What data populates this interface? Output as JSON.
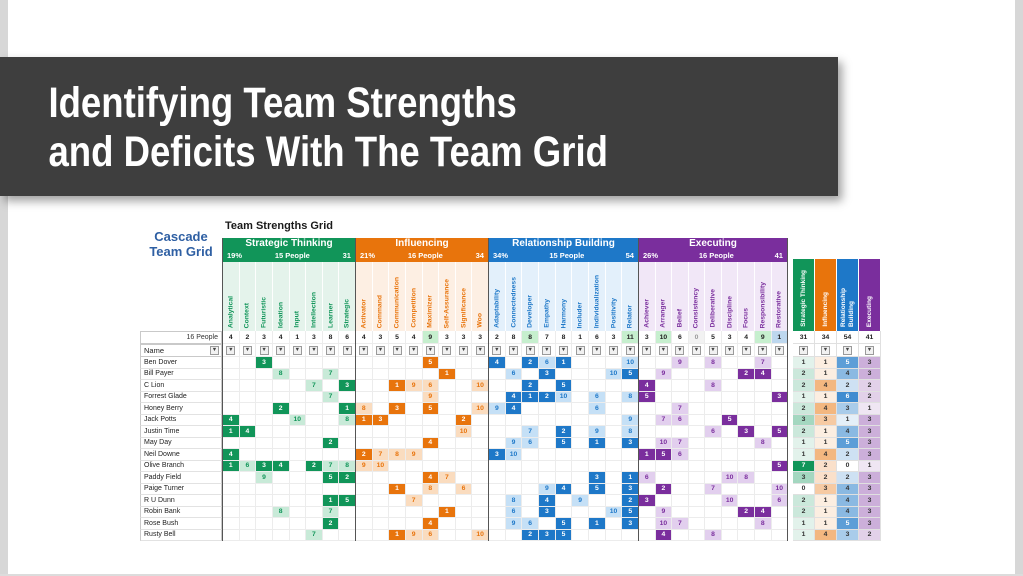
{
  "slide": {
    "title_line1": "Identifying Team Strengths",
    "title_line2": "and Deficits With The Team Grid",
    "title_box_color": "#3E3E3E"
  },
  "colors": {
    "count_high": "#C6EFCE",
    "count_low": "#BDD7EE",
    "count_dim_text": "#9a9a9a"
  },
  "grid": {
    "corner_label_line1": "Cascade",
    "corner_label_line2": "Team Grid",
    "corner_label_color": "#2E5FA3",
    "table_title": "Team Strengths Grid",
    "people_total_label": "16 People",
    "name_header": "Name",
    "filter_icon_glyph": "▼",
    "sections": [
      {
        "key": "st",
        "name": "Strategic Thinking",
        "pct": "19%",
        "people": "15 People",
        "total": 31,
        "color": "#119559",
        "tint": "#E4F3EB",
        "light": "#C8EAD8",
        "columns": [
          "Analytical",
          "Context",
          "Futuristic",
          "Ideation",
          "Input",
          "Intellection",
          "Learner",
          "Strategic"
        ],
        "counts": [
          4,
          2,
          3,
          4,
          1,
          3,
          8,
          6
        ],
        "marks": [
          "",
          "",
          "",
          "",
          "",
          "",
          "",
          ""
        ]
      },
      {
        "key": "in",
        "name": "Influencing",
        "pct": "21%",
        "people": "16 People",
        "total": 34,
        "color": "#E8740C",
        "tint": "#FDEFE3",
        "light": "#FADCBF",
        "columns": [
          "Activator",
          "Command",
          "Communication",
          "Competition",
          "Maximizer",
          "Self-Assurance",
          "Significance",
          "Woo"
        ],
        "counts": [
          4,
          3,
          5,
          4,
          9,
          3,
          3,
          3
        ],
        "marks": [
          "",
          "",
          "",
          "",
          "hi",
          "",
          "",
          ""
        ]
      },
      {
        "key": "rb",
        "name": "Relationship Building",
        "pct": "34%",
        "people": "15 People",
        "total": 54,
        "color": "#1E78C8",
        "tint": "#E3F0FB",
        "light": "#C5E0F6",
        "columns": [
          "Adaptability",
          "Connectedness",
          "Developer",
          "Empathy",
          "Harmony",
          "Includer",
          "Individualization",
          "Positivity",
          "Relator"
        ],
        "counts": [
          2,
          8,
          8,
          7,
          8,
          1,
          6,
          3,
          11
        ],
        "marks": [
          "",
          "",
          "hi",
          "",
          "",
          "",
          "",
          "",
          "hi"
        ]
      },
      {
        "key": "ex",
        "name": "Executing",
        "pct": "26%",
        "people": "16 People",
        "total": 41,
        "color": "#7A2E9D",
        "tint": "#F1E7F7",
        "light": "#E2CFEE",
        "columns": [
          "Achiever",
          "Arranger",
          "Belief",
          "Consistency",
          "Deliberative",
          "Discipline",
          "Focus",
          "Responsibility",
          "Restorative"
        ],
        "counts": [
          3,
          10,
          6,
          0,
          5,
          3,
          4,
          9,
          1
        ],
        "marks": [
          "",
          "hi",
          "",
          "dim",
          "",
          "",
          "",
          "hi",
          "lo"
        ]
      }
    ],
    "summary": {
      "headers": [
        "Strategic Thinking",
        "Influencing",
        "Relationship Building",
        "Executing"
      ],
      "totals": [
        31,
        34,
        54,
        41
      ]
    },
    "rows": [
      {
        "name": "Ben Dover",
        "st": [
          0,
          0,
          3,
          0,
          0,
          0,
          0,
          0
        ],
        "in": [
          0,
          0,
          0,
          0,
          5,
          0,
          0,
          0
        ],
        "rb": [
          4,
          0,
          2,
          6,
          1,
          0,
          0,
          0,
          10
        ],
        "ex": [
          0,
          0,
          9,
          0,
          8,
          0,
          0,
          7,
          0
        ],
        "sum": [
          1,
          1,
          5,
          3
        ]
      },
      {
        "name": "Bill Payer",
        "st": [
          0,
          0,
          0,
          8,
          0,
          0,
          7,
          0
        ],
        "in": [
          0,
          0,
          0,
          0,
          0,
          1,
          0,
          0
        ],
        "rb": [
          0,
          6,
          0,
          3,
          0,
          0,
          0,
          10,
          5
        ],
        "ex": [
          0,
          9,
          0,
          0,
          0,
          0,
          2,
          4,
          0
        ],
        "sum": [
          2,
          1,
          4,
          3
        ]
      },
      {
        "name": "C Lion",
        "st": [
          0,
          0,
          0,
          0,
          0,
          7,
          0,
          3
        ],
        "in": [
          0,
          0,
          1,
          9,
          6,
          0,
          0,
          10
        ],
        "rb": [
          0,
          0,
          2,
          0,
          5,
          0,
          0,
          0,
          0
        ],
        "ex": [
          4,
          0,
          0,
          0,
          8,
          0,
          0,
          0,
          0
        ],
        "sum": [
          2,
          4,
          2,
          2
        ]
      },
      {
        "name": "Forrest Glade",
        "st": [
          0,
          0,
          0,
          0,
          0,
          0,
          7,
          0
        ],
        "in": [
          0,
          0,
          0,
          0,
          9,
          0,
          0,
          0
        ],
        "rb": [
          0,
          4,
          1,
          2,
          10,
          0,
          6,
          0,
          8
        ],
        "ex": [
          5,
          0,
          0,
          0,
          0,
          0,
          0,
          0,
          3
        ],
        "sum": [
          1,
          1,
          6,
          2
        ]
      },
      {
        "name": "Honey Berry",
        "st": [
          0,
          0,
          0,
          2,
          0,
          0,
          0,
          1
        ],
        "in": [
          8,
          0,
          3,
          0,
          5,
          0,
          0,
          10
        ],
        "rb": [
          9,
          4,
          0,
          0,
          0,
          0,
          6,
          0,
          0
        ],
        "ex": [
          0,
          0,
          7,
          0,
          0,
          0,
          0,
          0,
          0
        ],
        "sum": [
          2,
          4,
          3,
          1
        ]
      },
      {
        "name": "Jack Potts",
        "st": [
          4,
          0,
          0,
          0,
          10,
          0,
          0,
          8
        ],
        "in": [
          1,
          3,
          0,
          0,
          0,
          0,
          2,
          0
        ],
        "rb": [
          0,
          0,
          0,
          0,
          0,
          0,
          0,
          0,
          9
        ],
        "ex": [
          0,
          7,
          6,
          0,
          0,
          5,
          0,
          0,
          0
        ],
        "sum": [
          3,
          3,
          1,
          3
        ]
      },
      {
        "name": "Justin Time",
        "st": [
          1,
          4,
          0,
          0,
          0,
          0,
          0,
          0
        ],
        "in": [
          0,
          0,
          0,
          0,
          0,
          0,
          10,
          0
        ],
        "rb": [
          0,
          0,
          7,
          0,
          2,
          0,
          9,
          0,
          8
        ],
        "ex": [
          0,
          0,
          0,
          0,
          6,
          0,
          3,
          0,
          5
        ],
        "sum": [
          2,
          1,
          4,
          3
        ]
      },
      {
        "name": "May Day",
        "st": [
          0,
          0,
          0,
          0,
          0,
          0,
          2,
          0
        ],
        "in": [
          0,
          0,
          0,
          0,
          4,
          0,
          0,
          0
        ],
        "rb": [
          0,
          9,
          6,
          0,
          5,
          0,
          1,
          0,
          3
        ],
        "ex": [
          0,
          10,
          7,
          0,
          0,
          0,
          0,
          8,
          0
        ],
        "sum": [
          1,
          1,
          5,
          3
        ]
      },
      {
        "name": "Neil Downe",
        "st": [
          4,
          0,
          0,
          0,
          0,
          0,
          0,
          0
        ],
        "in": [
          2,
          7,
          8,
          9,
          0,
          0,
          0,
          0
        ],
        "rb": [
          3,
          10,
          0,
          0,
          0,
          0,
          0,
          0,
          0
        ],
        "ex": [
          1,
          5,
          6,
          0,
          0,
          0,
          0,
          0,
          0
        ],
        "sum": [
          1,
          4,
          2,
          3
        ]
      },
      {
        "name": "Olive Branch",
        "st": [
          1,
          6,
          3,
          4,
          0,
          2,
          7,
          8
        ],
        "in": [
          9,
          10,
          0,
          0,
          0,
          0,
          0,
          0
        ],
        "rb": [
          0,
          0,
          0,
          0,
          0,
          0,
          0,
          0,
          0
        ],
        "ex": [
          0,
          0,
          0,
          0,
          0,
          0,
          0,
          0,
          5
        ],
        "sum": [
          7,
          2,
          0,
          1
        ]
      },
      {
        "name": "Paddy Field",
        "st": [
          0,
          0,
          9,
          0,
          0,
          0,
          5,
          2
        ],
        "in": [
          0,
          0,
          0,
          0,
          4,
          7,
          0,
          0
        ],
        "rb": [
          0,
          0,
          0,
          0,
          0,
          0,
          3,
          0,
          1
        ],
        "ex": [
          6,
          0,
          0,
          0,
          0,
          10,
          8,
          0,
          0
        ],
        "sum": [
          3,
          2,
          2,
          3
        ]
      },
      {
        "name": "Paige Turner",
        "st": [
          0,
          0,
          0,
          0,
          0,
          0,
          0,
          0
        ],
        "in": [
          0,
          0,
          1,
          0,
          8,
          0,
          6,
          0
        ],
        "rb": [
          0,
          0,
          0,
          9,
          4,
          0,
          5,
          0,
          3
        ],
        "ex": [
          0,
          2,
          0,
          0,
          7,
          0,
          0,
          0,
          10
        ],
        "sum": [
          0,
          3,
          4,
          3
        ]
      },
      {
        "name": "R U Dunn",
        "st": [
          0,
          0,
          0,
          0,
          0,
          0,
          1,
          5
        ],
        "in": [
          0,
          0,
          0,
          7,
          0,
          0,
          0,
          0
        ],
        "rb": [
          0,
          8,
          0,
          4,
          0,
          9,
          0,
          0,
          2
        ],
        "ex": [
          3,
          0,
          0,
          0,
          0,
          10,
          0,
          0,
          6
        ],
        "sum": [
          2,
          1,
          4,
          3
        ]
      },
      {
        "name": "Robin Bank",
        "st": [
          0,
          0,
          0,
          8,
          0,
          0,
          7,
          0
        ],
        "in": [
          0,
          0,
          0,
          0,
          0,
          1,
          0,
          0
        ],
        "rb": [
          0,
          6,
          0,
          3,
          0,
          0,
          0,
          10,
          5
        ],
        "ex": [
          0,
          9,
          0,
          0,
          0,
          0,
          2,
          4,
          0
        ],
        "sum": [
          2,
          1,
          4,
          3
        ]
      },
      {
        "name": "Rose Bush",
        "st": [
          0,
          0,
          0,
          0,
          0,
          0,
          2,
          0
        ],
        "in": [
          0,
          0,
          0,
          0,
          4,
          0,
          0,
          0
        ],
        "rb": [
          0,
          9,
          6,
          0,
          5,
          0,
          1,
          0,
          3
        ],
        "ex": [
          0,
          10,
          7,
          0,
          0,
          0,
          0,
          8,
          0
        ],
        "sum": [
          1,
          1,
          5,
          3
        ]
      },
      {
        "name": "Rusty Bell",
        "st": [
          0,
          0,
          0,
          0,
          0,
          7,
          0,
          0
        ],
        "in": [
          0,
          0,
          1,
          9,
          6,
          0,
          0,
          10
        ],
        "rb": [
          0,
          0,
          2,
          3,
          5,
          0,
          0,
          0,
          0
        ],
        "ex": [
          0,
          4,
          0,
          0,
          8,
          0,
          0,
          0,
          0
        ],
        "sum": [
          1,
          4,
          3,
          2
        ]
      }
    ]
  }
}
